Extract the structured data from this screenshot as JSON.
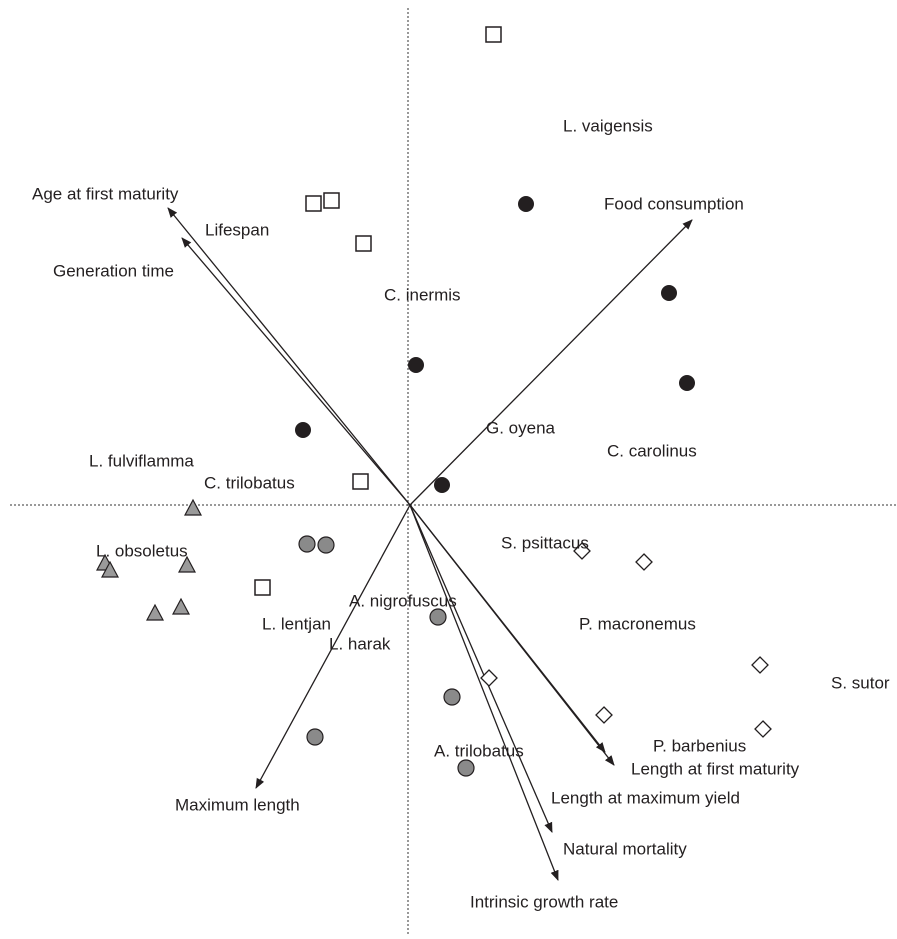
{
  "vectors": [
    "Age at first maturity",
    "Generation time",
    "Food consumption",
    "Maximum length",
    "Length at first maturity",
    "Length at maximum yield",
    "Natural mortality",
    "Intrinsic growth rate"
  ],
  "species": [
    "L. vaigensis",
    "Lifespan",
    "C. inermis",
    "G. oyena",
    "C. carolinus",
    "L. fulviflamma",
    "C. trilobatus",
    "S. psittacus",
    "L. obsoletus",
    "A. nigrofuscus",
    "P. macronemus",
    "L. lentjan",
    "L. harak",
    "S. sutor",
    "P. barbenius",
    "A. trilobatus"
  ]
}
